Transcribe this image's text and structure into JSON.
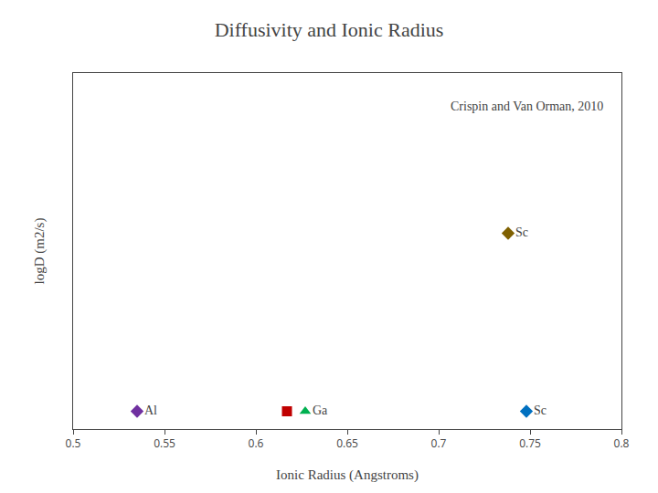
{
  "chart_data": {
    "type": "scatter",
    "title": "Diffusivity and Ionic Radius",
    "xlabel": "Ionic Radius (Angstroms)",
    "ylabel": "logD (m2/s)",
    "annotations": [
      {
        "text": "Crispin and Van Orman, 2010"
      }
    ],
    "x": [
      0.535,
      0.617,
      0.627,
      0.748,
      0.738
    ],
    "values": [
      -13.3,
      -13.3,
      -13.3,
      -13.3,
      -11.3
    ],
    "colors": [
      "#7030a0",
      "#c00000",
      "#00b050",
      "#0070c0",
      "#7f6000"
    ],
    "markers": [
      "diamond",
      "square",
      "triangle-up",
      "diamond",
      "diamond"
    ],
    "labels": [
      "Al",
      null,
      "Ga",
      "Sc",
      "Sc"
    ],
    "xlim": [
      0.5,
      0.8
    ],
    "ylim": [
      -13.5,
      -9.5
    ],
    "xticks": [
      0.5,
      0.55,
      0.6,
      0.65,
      0.7,
      0.75,
      0.8
    ],
    "yticks": [],
    "tick_labels": "x",
    "grid": false
  }
}
